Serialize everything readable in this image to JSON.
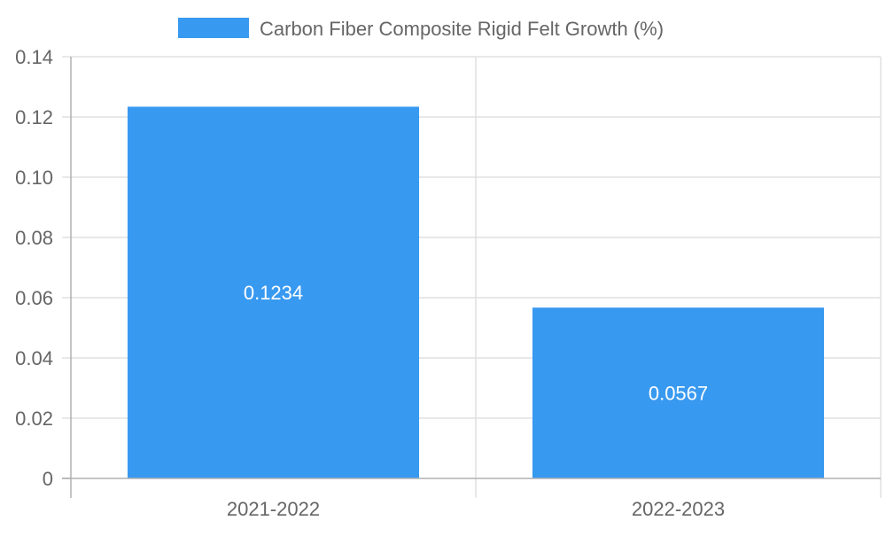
{
  "chart_data": {
    "type": "bar",
    "categories": [
      "2021-2022",
      "2022-2023"
    ],
    "series": [
      {
        "name": "Carbon Fiber Composite Rigid Felt Growth (%)",
        "values": [
          0.1234,
          0.0567
        ],
        "color": "#3899f0"
      }
    ],
    "data_labels": [
      "0.1234",
      "0.0567"
    ],
    "y_ticks": [
      "0",
      "0.02",
      "0.04",
      "0.06",
      "0.08",
      "0.10",
      "0.12",
      "0.14"
    ],
    "ylim": [
      0,
      0.14
    ],
    "grid": true,
    "legend_position": "top-center",
    "title": "",
    "xlabel": "",
    "ylabel": ""
  }
}
